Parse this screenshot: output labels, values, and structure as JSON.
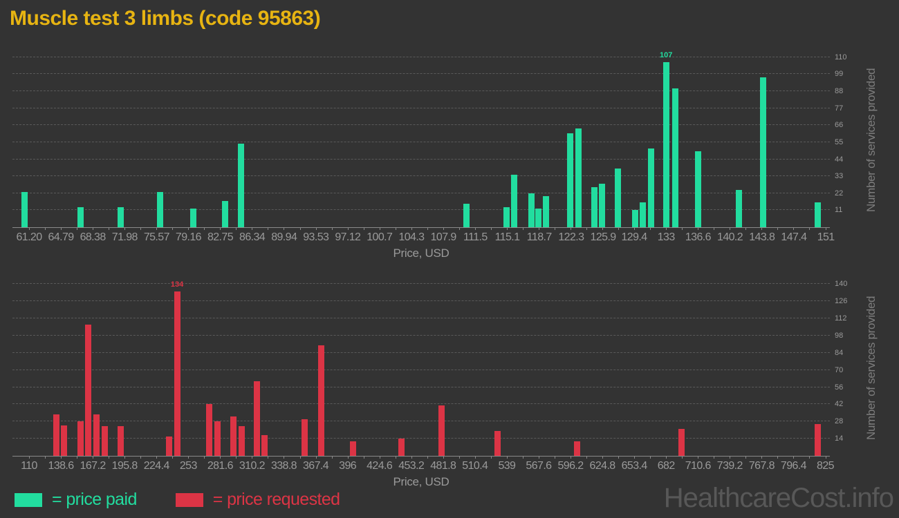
{
  "title": "Muscle test 3 limbs (code 95863)",
  "watermark": "HealthcareCost.info",
  "legend": {
    "items": [
      {
        "label": "= price paid",
        "color": "#22dd9f"
      },
      {
        "label": "= price requested",
        "color": "#dc3445"
      }
    ]
  },
  "chart_data": [
    {
      "type": "bar",
      "name": "price-paid-histogram",
      "series_name": "price paid",
      "color": "#22dd9f",
      "xlabel": "Price, USD",
      "ylabel": "Number of services provided",
      "grid": true,
      "legend_position": "bottom-left",
      "x_tick_labels": [
        "61.20",
        "64.79",
        "68.38",
        "71.98",
        "75.57",
        "79.16",
        "82.75",
        "86.34",
        "89.94",
        "93.53",
        "97.12",
        "100.7",
        "104.3",
        "107.9",
        "111.5",
        "115.1",
        "118.7",
        "122.3",
        "125.9",
        "129.4",
        "133",
        "136.6",
        "140.2",
        "143.8",
        "147.4",
        "151"
      ],
      "x_tick_values": [
        61.2,
        64.79,
        68.38,
        71.98,
        75.57,
        79.16,
        82.75,
        86.34,
        89.94,
        93.53,
        97.12,
        100.7,
        104.3,
        107.9,
        111.5,
        115.1,
        118.7,
        122.3,
        125.9,
        129.4,
        133,
        136.6,
        140.2,
        143.8,
        147.4,
        151
      ],
      "y_tick_values": [
        11,
        22,
        33,
        44,
        55,
        66,
        77,
        88,
        99,
        110
      ],
      "xlim": [
        59.3,
        151.6
      ],
      "ylim": [
        0,
        113.5
      ],
      "annotation": {
        "text": "107",
        "x": 133.0,
        "count": 107
      },
      "bars": [
        {
          "x": 60.7,
          "count": 23
        },
        {
          "x": 67.0,
          "count": 13
        },
        {
          "x": 71.5,
          "count": 13
        },
        {
          "x": 76.0,
          "count": 23
        },
        {
          "x": 79.7,
          "count": 12
        },
        {
          "x": 83.3,
          "count": 17
        },
        {
          "x": 85.1,
          "count": 54
        },
        {
          "x": 110.5,
          "count": 15
        },
        {
          "x": 115.0,
          "count": 13
        },
        {
          "x": 115.9,
          "count": 34
        },
        {
          "x": 117.8,
          "count": 22
        },
        {
          "x": 118.6,
          "count": 12
        },
        {
          "x": 119.5,
          "count": 20
        },
        {
          "x": 122.2,
          "count": 61
        },
        {
          "x": 123.1,
          "count": 64
        },
        {
          "x": 124.9,
          "count": 26
        },
        {
          "x": 125.8,
          "count": 28
        },
        {
          "x": 127.6,
          "count": 38
        },
        {
          "x": 129.5,
          "count": 11
        },
        {
          "x": 130.4,
          "count": 16
        },
        {
          "x": 131.3,
          "count": 51
        },
        {
          "x": 133.0,
          "count": 107
        },
        {
          "x": 134.0,
          "count": 90
        },
        {
          "x": 136.6,
          "count": 49
        },
        {
          "x": 141.2,
          "count": 24
        },
        {
          "x": 143.9,
          "count": 97
        },
        {
          "x": 150.1,
          "count": 16
        }
      ]
    },
    {
      "type": "bar",
      "name": "price-requested-histogram",
      "series_name": "price requested",
      "color": "#dc3445",
      "xlabel": "Price, USD",
      "ylabel": "Number of services provided",
      "grid": true,
      "legend_position": "bottom-left",
      "x_tick_labels": [
        "110",
        "138.6",
        "167.2",
        "195.8",
        "224.4",
        "253",
        "281.6",
        "310.2",
        "338.8",
        "367.4",
        "396",
        "424.6",
        "453.2",
        "481.8",
        "510.4",
        "539",
        "567.6",
        "596.2",
        "624.8",
        "653.4",
        "682",
        "710.6",
        "739.2",
        "767.8",
        "796.4",
        "825"
      ],
      "x_tick_values": [
        110,
        138.6,
        167.2,
        195.8,
        224.4,
        253,
        281.6,
        310.2,
        338.8,
        367.4,
        396,
        424.6,
        453.2,
        481.8,
        510.4,
        539,
        567.6,
        596.2,
        624.8,
        653.4,
        682,
        710.6,
        739.2,
        767.8,
        796.4,
        825
      ],
      "y_tick_values": [
        14,
        28,
        42,
        56,
        70,
        84,
        98,
        112,
        126,
        140
      ],
      "xlim": [
        95.1,
        829.0
      ],
      "ylim": [
        0,
        143.5
      ],
      "annotation": {
        "text": "134",
        "x": 242.9,
        "count": 134
      },
      "bars": [
        {
          "x": 134.7,
          "count": 34
        },
        {
          "x": 141.5,
          "count": 25
        },
        {
          "x": 156.0,
          "count": 28
        },
        {
          "x": 163.2,
          "count": 107
        },
        {
          "x": 170.8,
          "count": 34
        },
        {
          "x": 178.1,
          "count": 24
        },
        {
          "x": 192.2,
          "count": 24
        },
        {
          "x": 235.6,
          "count": 16
        },
        {
          "x": 242.9,
          "count": 134
        },
        {
          "x": 271.9,
          "count": 42
        },
        {
          "x": 279.1,
          "count": 28
        },
        {
          "x": 293.6,
          "count": 32
        },
        {
          "x": 300.8,
          "count": 24
        },
        {
          "x": 314.3,
          "count": 61
        },
        {
          "x": 321.5,
          "count": 17
        },
        {
          "x": 357.7,
          "count": 30
        },
        {
          "x": 372.6,
          "count": 90
        },
        {
          "x": 400.6,
          "count": 12
        },
        {
          "x": 444.6,
          "count": 14
        },
        {
          "x": 480.3,
          "count": 41
        },
        {
          "x": 530.6,
          "count": 20
        },
        {
          "x": 602.1,
          "count": 12
        },
        {
          "x": 696.1,
          "count": 22
        },
        {
          "x": 818.3,
          "count": 26
        }
      ]
    }
  ]
}
